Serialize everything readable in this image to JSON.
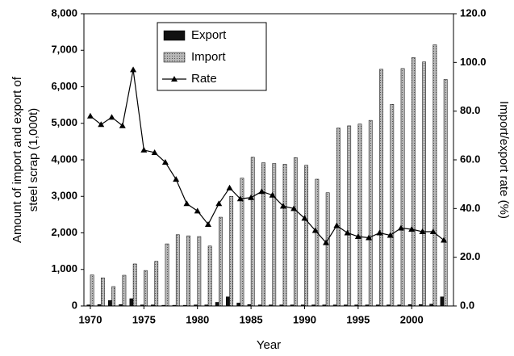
{
  "chart_data": {
    "type": "bar-line",
    "ylabel": [
      "Amount of import and export of",
      "steel scrap (1,000t)"
    ],
    "y2label": "Import/export rate (%)",
    "xlabel": "Year",
    "x": [
      1970,
      1971,
      1972,
      1973,
      1974,
      1975,
      1976,
      1977,
      1978,
      1979,
      1980,
      1981,
      1982,
      1983,
      1984,
      1985,
      1986,
      1987,
      1988,
      1989,
      1990,
      1991,
      1992,
      1993,
      1994,
      1995,
      1996,
      1997,
      1998,
      1999,
      2000,
      2001,
      2002,
      2003
    ],
    "series": [
      {
        "name": "Export",
        "color": "#111111",
        "kind": "bar",
        "values": [
          30,
          40,
          150,
          40,
          200,
          30,
          30,
          20,
          20,
          20,
          30,
          30,
          100,
          250,
          80,
          40,
          30,
          30,
          30,
          30,
          30,
          30,
          30,
          30,
          30,
          30,
          30,
          30,
          30,
          30,
          40,
          40,
          50,
          250
        ]
      },
      {
        "name": "Import",
        "color": "#9a9a9a",
        "kind": "bar",
        "values": [
          850,
          770,
          530,
          840,
          1150,
          970,
          1220,
          1700,
          1950,
          1920,
          1900,
          1640,
          2430,
          3000,
          3500,
          4070,
          3920,
          3900,
          3880,
          4060,
          3850,
          3470,
          3100,
          4870,
          4930,
          4980,
          5080,
          6480,
          5520,
          6500,
          6800,
          6680,
          7150,
          6200
        ]
      },
      {
        "name": "Rate",
        "color": "#000000",
        "kind": "line",
        "axis": "y2",
        "values": [
          78,
          74.5,
          77.5,
          74,
          97,
          64,
          63,
          59,
          52,
          42,
          39,
          33.5,
          42,
          48.5,
          44,
          44.5,
          47,
          45.5,
          41,
          40,
          36,
          31,
          26,
          33,
          30,
          28.5,
          28,
          30,
          29,
          32,
          31.5,
          30.5,
          30.5,
          27
        ]
      }
    ],
    "xlim": [
      1969.4,
      2003.9
    ],
    "xticks": [
      1970,
      1975,
      1980,
      1985,
      1990,
      1995,
      2000
    ],
    "ylim": [
      0,
      8000
    ],
    "yticks": [
      0,
      {
        "value": 1000,
        "label": "1,000"
      },
      {
        "value": 2000,
        "label": "2,000"
      },
      {
        "value": 3000,
        "label": "3,000"
      },
      {
        "value": 4000,
        "label": "4,000"
      },
      {
        "value": 5000,
        "label": "5,000"
      },
      {
        "value": 6000,
        "label": "6,000"
      },
      {
        "value": 7000,
        "label": "7,000"
      },
      {
        "value": 8000,
        "label": "8,000"
      }
    ],
    "y2lim": [
      0,
      120
    ],
    "y2ticks": [
      {
        "value": 0,
        "label": "0.0"
      },
      {
        "value": 20,
        "label": "20.0"
      },
      {
        "value": 40,
        "label": "40.0"
      },
      {
        "value": 60,
        "label": "60.0"
      },
      {
        "value": 80,
        "label": "80.0"
      },
      {
        "value": 100,
        "label": "100.0"
      },
      {
        "value": 120,
        "label": "120.0"
      }
    ],
    "legend": "top-center"
  }
}
